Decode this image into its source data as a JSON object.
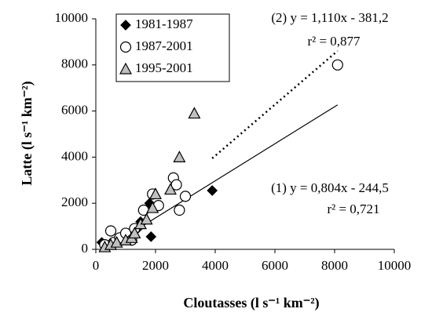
{
  "chart_data": {
    "type": "scatter",
    "x_label": "Cloutasses (l s⁻¹ km⁻²)",
    "y_label": "Latte (l s⁻¹ km⁻²)",
    "xlim": [
      0,
      10000
    ],
    "ylim": [
      0,
      10000
    ],
    "xticks": [
      0,
      2000,
      4000,
      6000,
      8000,
      10000
    ],
    "yticks": [
      0,
      2000,
      4000,
      6000,
      8000,
      10000
    ],
    "grid": false,
    "legend": "upper left",
    "series": [
      {
        "name": "1981-1987",
        "marker": "diamond",
        "color": "#000000",
        "x": [
          200,
          400,
          600,
          900,
          1200,
          1400,
          1500,
          1800,
          1850,
          2000,
          3900
        ],
        "values": [
          300,
          150,
          250,
          400,
          500,
          900,
          1200,
          2000,
          550,
          1800,
          2550
        ]
      },
      {
        "name": "1987-2001",
        "marker": "circle",
        "color": "#ffffff",
        "x": [
          300,
          500,
          600,
          800,
          1000,
          1200,
          1300,
          1600,
          1900,
          2100,
          2600,
          2700,
          2800,
          3000,
          8100
        ],
        "values": [
          200,
          800,
          300,
          500,
          700,
          400,
          900,
          1700,
          2400,
          1900,
          3100,
          2800,
          1700,
          2300,
          8000
        ]
      },
      {
        "name": "1995-2001",
        "marker": "triangle",
        "color": "#c0c0c0",
        "x": [
          300,
          500,
          700,
          1000,
          1200,
          1300,
          1500,
          1700,
          1900,
          2000,
          2500,
          2800,
          3300
        ],
        "values": [
          100,
          200,
          300,
          400,
          500,
          700,
          1100,
          1300,
          1800,
          2400,
          2600,
          4000,
          5900
        ]
      }
    ],
    "trendlines": [
      {
        "label": "(1) y = 0,804x - 244,5",
        "r2_label": "r² = 0,721",
        "slope": 0.804,
        "intercept": -244.5,
        "dashed": false
      },
      {
        "label": "(2) y = 1,110x - 381,2",
        "r2_label": "r² = 0,877",
        "slope": 1.11,
        "intercept": -381.2,
        "dashed": true
      }
    ]
  }
}
